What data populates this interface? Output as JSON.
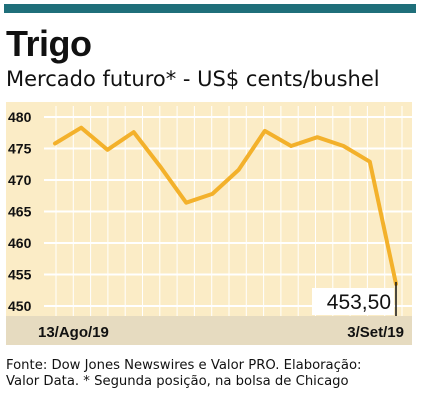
{
  "header": {
    "title": "Trigo",
    "subtitle": "Mercado futuro* - US$ cents/bushel"
  },
  "colors": {
    "accent": "#1f6f7a",
    "line": "#f3b12b",
    "plot_bg": "#fbecc6",
    "axis_bar": "#e6dbc0"
  },
  "chart_data": {
    "type": "line",
    "title": "Trigo",
    "subtitle": "Mercado futuro* - US$ cents/bushel",
    "xlabel": "",
    "ylabel": "",
    "ylim": [
      450,
      480
    ],
    "yticks": [
      480,
      475,
      470,
      465,
      460,
      455,
      450
    ],
    "ytick_labels": [
      "480",
      "475",
      "470",
      "465",
      "460",
      "455",
      "450"
    ],
    "x_labels": [
      "13/Ago/19",
      "3/Set/19"
    ],
    "grid": true,
    "series": [
      {
        "values": [
          475.8,
          478.3,
          474.8,
          477.6,
          472.2,
          466.4,
          467.8,
          471.6,
          477.8,
          475.4,
          476.8,
          475.4,
          472.9,
          453.5
        ]
      }
    ],
    "last_value_label": "453,50"
  },
  "footer": {
    "source_line1": "Fonte: Dow Jones Newswires e Valor PRO. Elaboração:",
    "source_line2": "Valor Data. * Segunda posição, na bolsa de Chicago"
  }
}
